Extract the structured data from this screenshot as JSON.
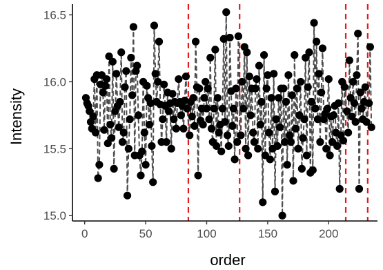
{
  "chart_data": {
    "type": "line",
    "xlabel": "order",
    "ylabel": "Intensity",
    "xlim": [
      -10,
      240
    ],
    "ylim": [
      14.96,
      16.58
    ],
    "x_ticks": [
      0,
      50,
      100,
      150,
      200
    ],
    "y_ticks": [
      15.0,
      15.5,
      16.0,
      16.5
    ],
    "x_tick_labels": [
      "0",
      "50",
      "100",
      "150",
      "200"
    ],
    "y_tick_labels": [
      "15.0",
      "15.5",
      "16.0",
      "16.5"
    ],
    "grid": false,
    "colors": {
      "points": "#000000",
      "line": "#4d4d4d",
      "vlines": "#e41a1c",
      "axis": "#000000"
    },
    "vlines": [
      85,
      127,
      214,
      232
    ],
    "series": [
      {
        "points": [
          [
            1,
            15.88
          ],
          [
            2,
            15.84
          ],
          [
            3,
            15.82
          ],
          [
            4,
            15.78
          ],
          [
            5,
            15.7
          ],
          [
            6,
            15.65
          ],
          [
            7,
            15.74
          ],
          [
            8,
            16.02
          ],
          [
            9,
            15.62
          ],
          [
            10,
            16.05
          ],
          [
            11,
            15.28
          ],
          [
            12,
            15.38
          ],
          [
            13,
            15.98
          ],
          [
            14,
            16.05
          ],
          [
            15,
            15.92
          ],
          [
            16,
            15.64
          ],
          [
            17,
            15.97
          ],
          [
            18,
            16.02
          ],
          [
            19,
            15.54
          ],
          [
            20,
            16.19
          ],
          [
            21,
            15.68
          ],
          [
            22,
            15.58
          ],
          [
            23,
            16.15
          ],
          [
            24,
            15.35
          ],
          [
            25,
            15.78
          ],
          [
            26,
            16.06
          ],
          [
            27,
            15.82
          ],
          [
            28,
            15.66
          ],
          [
            29,
            15.85
          ],
          [
            30,
            16.22
          ],
          [
            31,
            15.55
          ],
          [
            32,
            15.62
          ],
          [
            33,
            15.96
          ],
          [
            34,
            16.08
          ],
          [
            35,
            15.15
          ],
          [
            36,
            15.5
          ],
          [
            37,
            15.72
          ],
          [
            38,
            16.18
          ],
          [
            39,
            15.9
          ],
          [
            40,
            16.41
          ],
          [
            41,
            15.45
          ],
          [
            42,
            16.08
          ],
          [
            43,
            16.12
          ],
          [
            44,
            15.75
          ],
          [
            45,
            15.45
          ],
          [
            46,
            15.3
          ],
          [
            47,
            15.48
          ],
          [
            48,
            16.0
          ],
          [
            49,
            15.62
          ],
          [
            50,
            15.38
          ],
          [
            51,
            15.97
          ],
          [
            52,
            15.88
          ],
          [
            53,
            15.68
          ],
          [
            54,
            15.84
          ],
          [
            55,
            15.52
          ],
          [
            56,
            15.25
          ],
          [
            57,
            16.42
          ],
          [
            58,
            16.06
          ],
          [
            59,
            15.85
          ],
          [
            60,
            16.0
          ],
          [
            61,
            16.3
          ],
          [
            62,
            15.83
          ],
          [
            63,
            15.55
          ],
          [
            64,
            15.72
          ],
          [
            65,
            15.98
          ],
          [
            66,
            15.82
          ],
          [
            67,
            15.55
          ],
          [
            68,
            15.92
          ],
          [
            69,
            15.78
          ],
          [
            70,
            15.84
          ],
          [
            71,
            15.5
          ],
          [
            72,
            15.91
          ],
          [
            73,
            15.72
          ],
          [
            74,
            15.85
          ],
          [
            75,
            15.65
          ],
          [
            76,
            15.84
          ],
          [
            77,
            16.02
          ],
          [
            78,
            15.85
          ],
          [
            79,
            15.75
          ],
          [
            80,
            15.82
          ],
          [
            81,
            15.65
          ],
          [
            82,
            15.86
          ],
          [
            83,
            16.04
          ],
          [
            84,
            15.8
          ],
          [
            86,
            15.6
          ],
          [
            87,
            15.85
          ],
          [
            88,
            15.74
          ],
          [
            89,
            15.88
          ],
          [
            90,
            15.67
          ],
          [
            91,
            16.3
          ],
          [
            92,
            15.96
          ],
          [
            93,
            15.3
          ],
          [
            94,
            15.95
          ],
          [
            95,
            15.71
          ],
          [
            96,
            15.8
          ],
          [
            97,
            15.68
          ],
          [
            98,
            15.88
          ],
          [
            99,
            16.0
          ],
          [
            100,
            15.8
          ],
          [
            101,
            15.95
          ],
          [
            102,
            15.72
          ],
          [
            103,
            16.18
          ],
          [
            104,
            15.65
          ],
          [
            105,
            15.55
          ],
          [
            106,
            15.8
          ],
          [
            107,
            16.24
          ],
          [
            108,
            15.52
          ],
          [
            109,
            15.88
          ],
          [
            110,
            15.62
          ],
          [
            111,
            15.68
          ],
          [
            112,
            15.48
          ],
          [
            113,
            15.8
          ],
          [
            114,
            16.32
          ],
          [
            115,
            15.7
          ],
          [
            116,
            16.52
          ],
          [
            117,
            15.6
          ],
          [
            118,
            15.52
          ],
          [
            119,
            16.33
          ],
          [
            120,
            15.93
          ],
          [
            121,
            15.67
          ],
          [
            122,
            15.8
          ],
          [
            123,
            15.42
          ],
          [
            124,
            15.95
          ],
          [
            125,
            15.55
          ],
          [
            126,
            16.34
          ],
          [
            128,
            15.6
          ],
          [
            129,
            16.0
          ],
          [
            130,
            15.8
          ],
          [
            131,
            16.26
          ],
          [
            132,
            15.5
          ],
          [
            133,
            16.22
          ],
          [
            134,
            15.45
          ],
          [
            135,
            16.04
          ],
          [
            136,
            15.75
          ],
          [
            137,
            15.95
          ],
          [
            138,
            15.62
          ],
          [
            139,
            15.55
          ],
          [
            140,
            15.95
          ],
          [
            141,
            16.02
          ],
          [
            142,
            15.5
          ],
          [
            143,
            16.12
          ],
          [
            144,
            15.68
          ],
          [
            145,
            15.85
          ],
          [
            146,
            15.1
          ],
          [
            147,
            16.2
          ],
          [
            148,
            15.45
          ],
          [
            149,
            15.95
          ],
          [
            150,
            16.05
          ],
          [
            151,
            15.62
          ],
          [
            152,
            15.42
          ],
          [
            153,
            15.88
          ],
          [
            154,
            15.5
          ],
          [
            155,
            16.06
          ],
          [
            156,
            15.18
          ],
          [
            157,
            15.72
          ],
          [
            158,
            15.52
          ],
          [
            159,
            15.88
          ],
          [
            160,
            15.66
          ],
          [
            161,
            15.95
          ],
          [
            162,
            15.0
          ],
          [
            163,
            15.95
          ],
          [
            164,
            15.55
          ],
          [
            165,
            15.85
          ],
          [
            166,
            15.38
          ],
          [
            167,
            16.05
          ],
          [
            168,
            15.6
          ],
          [
            169,
            15.55
          ],
          [
            170,
            15.9
          ],
          [
            171,
            15.26
          ],
          [
            172,
            16.2
          ],
          [
            173,
            15.65
          ],
          [
            174,
            15.95
          ],
          [
            175,
            15.5
          ],
          [
            176,
            15.75
          ],
          [
            177,
            16.0
          ],
          [
            178,
            15.35
          ],
          [
            179,
            15.58
          ],
          [
            180,
            15.72
          ],
          [
            181,
            16.18
          ],
          [
            182,
            15.45
          ],
          [
            183,
            15.96
          ],
          [
            184,
            16.22
          ],
          [
            185,
            15.32
          ],
          [
            186,
            15.85
          ],
          [
            187,
            15.34
          ],
          [
            188,
            16.44
          ],
          [
            189,
            15.8
          ],
          [
            190,
            16.3
          ],
          [
            191,
            15.72
          ],
          [
            192,
            16.06
          ],
          [
            193,
            15.55
          ],
          [
            194,
            15.92
          ],
          [
            195,
            16.25
          ],
          [
            196,
            15.72
          ],
          [
            197,
            15.76
          ],
          [
            198,
            15.5
          ],
          [
            199,
            15.8
          ],
          [
            200,
            16.02
          ],
          [
            201,
            15.45
          ],
          [
            202,
            15.74
          ],
          [
            203,
            15.55
          ],
          [
            204,
            15.75
          ],
          [
            205,
            15.82
          ],
          [
            206,
            15.62
          ],
          [
            207,
            15.52
          ],
          [
            208,
            15.84
          ],
          [
            209,
            15.2
          ],
          [
            210,
            15.6
          ],
          [
            211,
            16.0
          ],
          [
            212,
            15.56
          ],
          [
            213,
            15.96
          ],
          [
            215,
            15.78
          ],
          [
            216,
            15.62
          ],
          [
            217,
            16.16
          ],
          [
            218,
            15.88
          ],
          [
            219,
            15.74
          ],
          [
            220,
            16.0
          ],
          [
            221,
            15.84
          ],
          [
            222,
            15.7
          ],
          [
            223,
            16.05
          ],
          [
            224,
            16.36
          ],
          [
            225,
            15.2
          ],
          [
            226,
            15.92
          ],
          [
            227,
            15.8
          ],
          [
            228,
            15.72
          ],
          [
            229,
            15.85
          ],
          [
            230,
            15.96
          ],
          [
            231,
            15.7
          ],
          [
            233,
            15.84
          ],
          [
            234,
            16.26
          ],
          [
            235,
            15.66
          ]
        ]
      }
    ]
  }
}
